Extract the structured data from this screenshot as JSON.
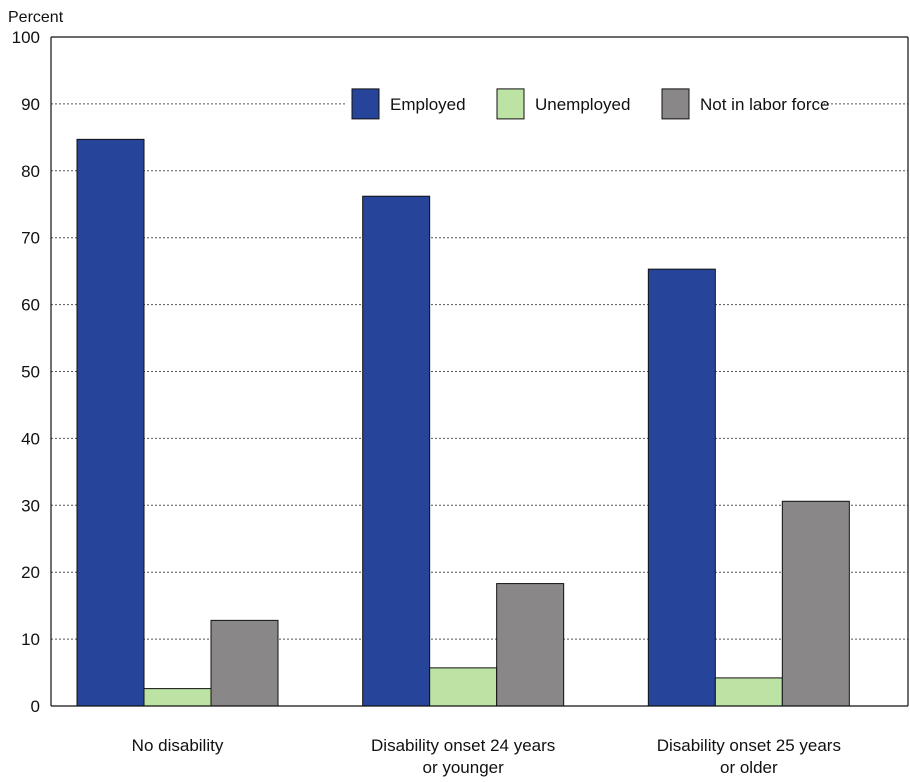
{
  "chart_data": {
    "type": "bar",
    "ylabel": "Percent",
    "ylim": [
      0,
      100
    ],
    "yticks": [
      0,
      10,
      20,
      30,
      40,
      50,
      60,
      70,
      80,
      90,
      100
    ],
    "grid": "horizontal dotted",
    "legend_position": "top-right",
    "categories": [
      [
        "No disability"
      ],
      [
        "Disability onset 24 years",
        "or younger"
      ],
      [
        "Disability onset 25 years",
        "or older"
      ]
    ],
    "series": [
      {
        "name": "Employed",
        "color": "#26459a",
        "values": [
          84.7,
          76.2,
          65.3
        ]
      },
      {
        "name": "Unemployed",
        "color": "#bde3a4",
        "values": [
          2.6,
          5.7,
          4.2
        ]
      },
      {
        "name": "Not in labor force",
        "color": "#8a8788",
        "values": [
          12.8,
          18.3,
          30.6
        ]
      }
    ]
  }
}
